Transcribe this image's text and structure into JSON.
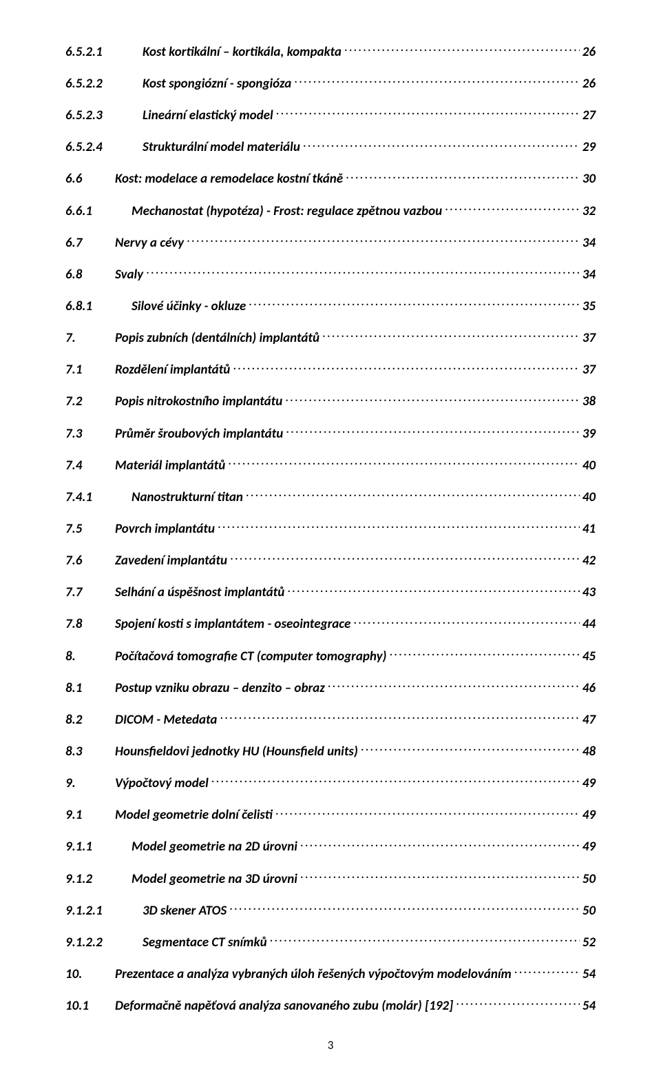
{
  "page_number": "3",
  "font": {
    "family": "Calibri",
    "size_pt": 14,
    "weight": "bold",
    "style": "italic",
    "color": "#000000"
  },
  "background_color": "#ffffff",
  "toc": [
    {
      "num": "6.5.2.1",
      "title": "Kost kortikální – kortikála, kompakta",
      "page": "26",
      "indent": 3
    },
    {
      "num": "6.5.2.2",
      "title": "Kost spongiózní - spongióza",
      "page": "26",
      "indent": 3
    },
    {
      "num": "6.5.2.3",
      "title": "Lineární elastický model",
      "page": "27",
      "indent": 3
    },
    {
      "num": "6.5.2.4",
      "title": "Strukturální model materiálu",
      "page": "29",
      "indent": 3
    },
    {
      "num": "6.6",
      "title": "Kost: modelace a remodelace kostní tkáně",
      "page": "30",
      "indent": 1
    },
    {
      "num": "6.6.1",
      "title": "Mechanostat (hypotéza) - Frost: regulace zpětnou vazbou",
      "page": "32",
      "indent": 2
    },
    {
      "num": "6.7",
      "title": "Nervy a cévy",
      "page": "34",
      "indent": 1
    },
    {
      "num": "6.8",
      "title": "Svaly",
      "page": "34",
      "indent": 1
    },
    {
      "num": "6.8.1",
      "title": "Silové účinky - okluze",
      "page": "35",
      "indent": 2
    },
    {
      "num": "7.",
      "title": "Popis zubních (dentálních) implantátů",
      "page": "37",
      "indent": 1
    },
    {
      "num": "7.1",
      "title": "Rozdělení implantátů",
      "page": "37",
      "indent": 1
    },
    {
      "num": "7.2",
      "title": "Popis nitrokostního implantátu",
      "page": "38",
      "indent": 1
    },
    {
      "num": "7.3",
      "title": "Průměr šroubových implantátu",
      "page": "39",
      "indent": 1
    },
    {
      "num": "7.4",
      "title": "Materiál implantátů",
      "page": "40",
      "indent": 1
    },
    {
      "num": "7.4.1",
      "title": "Nanostrukturní titan",
      "page": "40",
      "indent": 2
    },
    {
      "num": "7.5",
      "title": "Povrch implantátu",
      "page": "41",
      "indent": 1
    },
    {
      "num": "7.6",
      "title": "Zavedení implantátu",
      "page": "42",
      "indent": 1
    },
    {
      "num": "7.7",
      "title": "Selhání a úspěšnost implantátů",
      "page": "43",
      "indent": 1
    },
    {
      "num": "7.8",
      "title": "Spojení kosti s implantátem - oseointegrace",
      "page": "44",
      "indent": 1
    },
    {
      "num": "8.",
      "title": "Počítačová tomografie CT (computer tomography)",
      "page": "45",
      "indent": 1
    },
    {
      "num": "8.1",
      "title": "Postup vzniku obrazu – denzito – obraz",
      "page": "46",
      "indent": 1
    },
    {
      "num": "8.2",
      "title": "DICOM - Metedata",
      "page": "47",
      "indent": 1
    },
    {
      "num": "8.3",
      "title": "Hounsfieldovi jednotky HU (Hounsfield units)",
      "page": "48",
      "indent": 1
    },
    {
      "num": "9.",
      "title": "Výpočtový model",
      "page": "49",
      "indent": 1
    },
    {
      "num": "9.1",
      "title": "Model geometrie dolní čelisti",
      "page": "49",
      "indent": 1
    },
    {
      "num": "9.1.1",
      "title": "Model geometrie na 2D úrovni",
      "page": "49",
      "indent": 2
    },
    {
      "num": "9.1.2",
      "title": "Model geometrie na 3D úrovni",
      "page": "50",
      "indent": 2
    },
    {
      "num": "9.1.2.1",
      "title": "3D skener ATOS",
      "page": "50",
      "indent": 3
    },
    {
      "num": "9.1.2.2",
      "title": "Segmentace CT snímků",
      "page": "52",
      "indent": 3
    },
    {
      "num": "10.",
      "title": "Prezentace a analýza vybraných úloh řešených výpočtovým modelováním",
      "page": "54",
      "indent": 1
    },
    {
      "num": "10.1",
      "title": "Deformačně napěťová analýza sanovaného zubu (molár) [192]",
      "page": "54",
      "indent": 1
    }
  ]
}
